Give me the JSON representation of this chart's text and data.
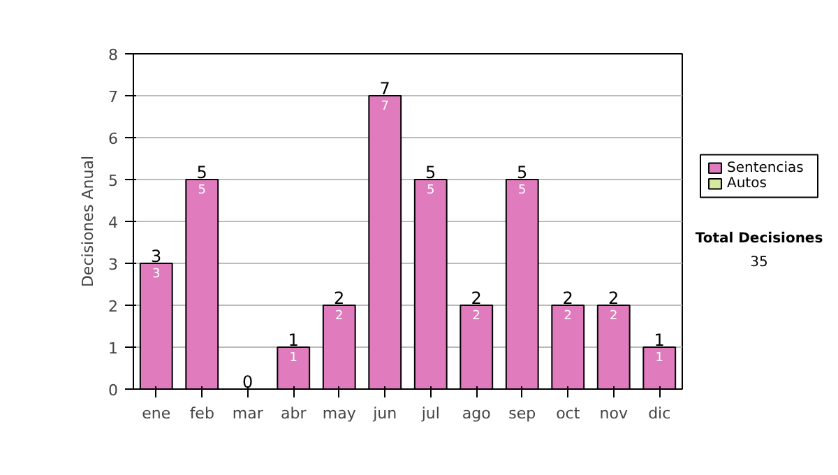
{
  "chart_data": {
    "type": "bar",
    "stacked": true,
    "ylabel": "Decisiones Anual",
    "categories": [
      "ene",
      "feb",
      "mar",
      "abr",
      "may",
      "jun",
      "jul",
      "ago",
      "sep",
      "oct",
      "nov",
      "dic"
    ],
    "series": [
      {
        "name": "Sentencias",
        "color": "#e07bbd",
        "values": [
          3,
          5,
          0,
          1,
          2,
          7,
          5,
          2,
          5,
          2,
          2,
          1
        ],
        "value_labels": [
          "3",
          "5",
          null,
          "1",
          "2",
          "7",
          "5",
          "2",
          "5",
          "2",
          "2",
          "1"
        ]
      },
      {
        "name": "Autos",
        "color": "#d4e8a0",
        "values": [
          0,
          0,
          0,
          0,
          0,
          0,
          0,
          0,
          0,
          0,
          0,
          0
        ]
      }
    ],
    "totals": [
      "3",
      "5",
      "0",
      "1",
      "2",
      "7",
      "5",
      "2",
      "5",
      "2",
      "2",
      "1"
    ],
    "ylim": [
      0,
      8
    ],
    "yticks": [
      0,
      1,
      2,
      3,
      4,
      5,
      6,
      7,
      8
    ],
    "grid": "y",
    "legend": "right",
    "annotations": [
      "Total Decisiones",
      "35"
    ]
  }
}
